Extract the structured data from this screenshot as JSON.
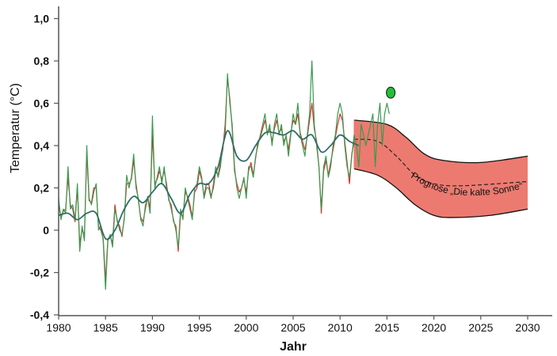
{
  "chart_data": {
    "type": "line",
    "title": "",
    "xlabel": "Jahr",
    "ylabel": "Temperatur (°C)",
    "xlim": [
      1980,
      2033
    ],
    "ylim": [
      -0.4,
      1.0
    ],
    "xticks": [
      1980,
      1985,
      1990,
      1995,
      2000,
      2005,
      2010,
      2015,
      2020,
      2025,
      2030
    ],
    "xtick_labels": [
      "1980",
      "1985",
      "1990",
      "1995",
      "2000",
      "2005",
      "2010",
      "2015",
      "2020",
      "2025",
      "2030"
    ],
    "yticks": [
      -0.4,
      -0.2,
      0,
      0.2,
      0.4,
      0.6,
      0.8,
      1.0
    ],
    "ytick_labels": [
      "-0,4",
      "-0,2",
      "0",
      "0,2",
      "0,4",
      "0,6",
      "0,8",
      "1,0"
    ],
    "grid": false,
    "observed": {
      "start": 1980,
      "step": 0.25,
      "green": [
        0.15,
        0.05,
        0.1,
        0.08,
        0.3,
        0.1,
        0.12,
        0.05,
        0.22,
        -0.1,
        0.02,
        -0.05,
        0.4,
        0.15,
        0.12,
        0.18,
        0.22,
        0.0,
        0.02,
        -0.05,
        -0.28,
        -0.05,
        -0.02,
        -0.08,
        0.1,
        0.05,
        0.0,
        -0.02,
        0.05,
        0.26,
        0.2,
        0.25,
        0.36,
        0.2,
        0.15,
        0.05,
        0.02,
        0.12,
        0.15,
        0.08,
        0.54,
        0.2,
        0.25,
        0.3,
        0.22,
        0.3,
        0.2,
        0.15,
        0.1,
        0.05,
        0.0,
        -0.08,
        0.1,
        0.05,
        0.2,
        0.15,
        0.1,
        0.05,
        0.2,
        0.22,
        0.3,
        0.25,
        0.15,
        0.2,
        0.2,
        0.15,
        0.22,
        0.3,
        0.25,
        0.3,
        0.4,
        0.45,
        0.74,
        0.6,
        0.5,
        0.3,
        0.2,
        0.15,
        0.2,
        0.25,
        0.15,
        0.3,
        0.3,
        0.25,
        0.35,
        0.4,
        0.45,
        0.5,
        0.55,
        0.45,
        0.5,
        0.4,
        0.5,
        0.55,
        0.45,
        0.5,
        0.4,
        0.45,
        0.35,
        0.45,
        0.55,
        0.5,
        0.6,
        0.45,
        0.4,
        0.35,
        0.45,
        0.55,
        0.8,
        0.5,
        0.4,
        0.3,
        0.1,
        0.3,
        0.35,
        0.25,
        0.3,
        0.4,
        0.45,
        0.55,
        0.6,
        0.55,
        0.4,
        0.3,
        0.25,
        0.35,
        0.45,
        0.4,
        0.3,
        0.5,
        0.45,
        0.4,
        0.45,
        0.5,
        0.55,
        0.3,
        0.5,
        0.6,
        0.4,
        0.55,
        0.6,
        0.55
      ],
      "red": [
        0.12,
        0.06,
        0.09,
        0.1,
        0.25,
        0.12,
        0.1,
        0.04,
        0.2,
        -0.06,
        0.0,
        -0.02,
        0.36,
        0.14,
        0.13,
        0.2,
        0.2,
        0.02,
        0.0,
        -0.04,
        -0.24,
        -0.04,
        -0.03,
        -0.06,
        0.12,
        0.04,
        0.02,
        -0.03,
        0.06,
        0.22,
        0.22,
        0.24,
        0.33,
        0.22,
        0.14,
        0.06,
        0.04,
        0.1,
        0.16,
        0.1,
        0.45,
        0.22,
        0.24,
        0.28,
        0.24,
        0.28,
        0.22,
        0.14,
        0.12,
        0.04,
        0.02,
        -0.1,
        0.08,
        0.06,
        0.18,
        0.16,
        0.12,
        0.06,
        0.18,
        0.2,
        0.28,
        0.24,
        0.16,
        0.22,
        0.22,
        0.16,
        0.2,
        0.28,
        0.26,
        0.32,
        0.38,
        0.5,
        0.72,
        0.62,
        0.48,
        0.28,
        0.22,
        0.18,
        0.2,
        0.24,
        0.18,
        0.28,
        0.32,
        0.26,
        0.34,
        0.42,
        0.44,
        0.48,
        0.52,
        0.46,
        0.48,
        0.42,
        0.48,
        0.52,
        0.46,
        0.48,
        0.42,
        0.44,
        0.38,
        0.46,
        0.52,
        0.5,
        0.55,
        0.46,
        0.42,
        0.38,
        0.44,
        0.52,
        0.6,
        0.48,
        0.42,
        0.3,
        0.08,
        0.28,
        0.33,
        0.26,
        0.32,
        0.38,
        0.44,
        0.5,
        0.55,
        0.52,
        0.42,
        0.32,
        0.22,
        0.36,
        0.42
      ],
      "smoothed_years": [
        1980,
        1981,
        1982,
        1983,
        1984,
        1985,
        1986,
        1987,
        1988,
        1989,
        1990,
        1991,
        1992,
        1993,
        1994,
        1995,
        1996,
        1997,
        1998,
        1999,
        2000,
        2001,
        2002,
        2003,
        2004,
        2005,
        2006,
        2007,
        2008,
        2009,
        2010,
        2011,
        2012
      ],
      "smoothed": [
        0.07,
        0.08,
        0.05,
        0.08,
        0.08,
        -0.04,
        0.0,
        0.1,
        0.16,
        0.13,
        0.18,
        0.22,
        0.15,
        0.08,
        0.17,
        0.22,
        0.22,
        0.3,
        0.47,
        0.35,
        0.33,
        0.4,
        0.46,
        0.46,
        0.45,
        0.47,
        0.43,
        0.45,
        0.37,
        0.4,
        0.45,
        0.42,
        0.4
      ]
    },
    "forecast": {
      "label": "Prognose „Die kalte Sonne“",
      "upper": {
        "x": [
          2011.5,
          2015,
          2017,
          2019,
          2021,
          2025,
          2030
        ],
        "y": [
          0.52,
          0.5,
          0.44,
          0.36,
          0.33,
          0.32,
          0.35
        ]
      },
      "lower": {
        "x": [
          2011.5,
          2014,
          2016,
          2018,
          2020,
          2022,
          2026,
          2030
        ],
        "y": [
          0.29,
          0.26,
          0.2,
          0.12,
          0.07,
          0.06,
          0.07,
          0.1
        ]
      },
      "median": {
        "x": [
          2011.5,
          2014,
          2016,
          2018,
          2020,
          2023,
          2030
        ],
        "y": [
          0.43,
          0.42,
          0.35,
          0.26,
          0.22,
          0.21,
          0.23
        ]
      }
    },
    "marker": {
      "x": 2015.4,
      "y": 0.65
    },
    "colors": {
      "band": "#ec7a70",
      "green": "#3a9a50",
      "red": "#d8302a",
      "smoothed": "#2e6e66",
      "marker": "#22c033"
    }
  }
}
